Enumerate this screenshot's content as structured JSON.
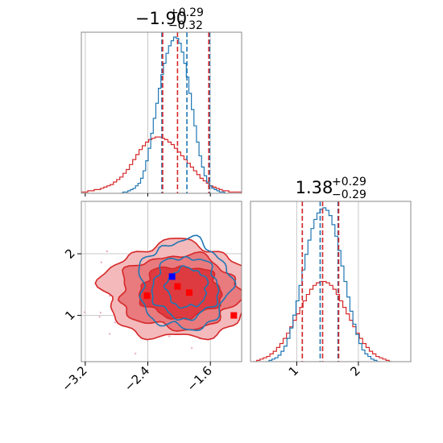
{
  "chart_data": {
    "type": "corner",
    "parameters": [
      {
        "title_value": "−1.90",
        "title_plus": "+0.29",
        "title_minus": "−0.32",
        "range": [
          -3.25,
          -1.2
        ],
        "ticks": [
          -3.2,
          -2.4,
          -1.6
        ],
        "tick_labels": [
          "−3.2",
          "−2.4",
          "−1.6"
        ]
      },
      {
        "title_value": "1.38",
        "title_plus": "+0.29",
        "title_minus": "−0.29",
        "range": [
          0.25,
          2.85
        ],
        "ticks": [
          1,
          2
        ],
        "tick_labels": [
          "1",
          "2"
        ]
      }
    ],
    "colors": {
      "blue": "#1f77b4",
      "red": "#d62728",
      "marker_blue": "#0000ff",
      "marker_red": "#ff0000",
      "grid": "#c8c8c8"
    },
    "series": [
      {
        "color": "blue",
        "quantiles_p1": [
          -2.22,
          -1.9,
          -1.61
        ],
        "quantiles_p2": [
          1.09,
          1.38,
          1.67
        ],
        "hist_p1": {
          "x0": -2.72,
          "x1": -1.42,
          "counts": [
            1,
            1,
            2,
            3,
            4,
            6,
            8,
            12,
            18,
            26,
            36,
            48,
            60,
            72,
            84,
            95,
            104,
            112,
            118,
            122,
            125,
            124,
            120,
            113,
            104,
            93,
            80,
            67,
            54,
            41,
            30,
            21,
            14,
            9,
            6,
            4,
            3,
            2,
            1,
            1
          ]
        },
        "hist_p2": {
          "x0": 0.55,
          "x1": 2.3,
          "counts": [
            1,
            2,
            3,
            5,
            8,
            12,
            18,
            26,
            36,
            47,
            59,
            71,
            83,
            94,
            103,
            110,
            115,
            118,
            119,
            117,
            113,
            106,
            97,
            86,
            74,
            62,
            50,
            39,
            29,
            21,
            14,
            9,
            6,
            4,
            2,
            1
          ]
        }
      },
      {
        "color": "red",
        "quantiles_p1": [
          -2.21,
          -2.02,
          -1.62
        ],
        "quantiles_p2": [
          1.09,
          1.42,
          1.68
        ],
        "hist_p1": {
          "x0": -3.25,
          "x1": -1.2,
          "counts": [
            1,
            1,
            2,
            2,
            3,
            3,
            4,
            5,
            6,
            7,
            9,
            11,
            13,
            16,
            19,
            23,
            27,
            31,
            35,
            38,
            41,
            43,
            44,
            45,
            45,
            44,
            43,
            41,
            39,
            36,
            33,
            30,
            27,
            24,
            21,
            18,
            15,
            12,
            10,
            8,
            6,
            5,
            4,
            3,
            2,
            2,
            1,
            1,
            1,
            1
          ]
        },
        "hist_p2": {
          "x0": 0.35,
          "x1": 2.5,
          "counts": [
            1,
            2,
            3,
            4,
            6,
            8,
            11,
            14,
            18,
            22,
            27,
            32,
            37,
            42,
            47,
            52,
            56,
            59,
            61,
            62,
            62,
            61,
            59,
            56,
            52,
            47,
            42,
            37,
            32,
            27,
            22,
            18,
            14,
            11,
            8,
            6,
            4,
            3,
            2,
            1
          ]
        }
      }
    ],
    "markers": [
      {
        "color": "marker_blue",
        "x": -2.09,
        "y": 1.63
      },
      {
        "color": "marker_red",
        "x": -2.02,
        "y": 1.47
      },
      {
        "color": "marker_red",
        "x": -1.87,
        "y": 1.37
      },
      {
        "color": "marker_red",
        "x": -2.41,
        "y": 1.32
      },
      {
        "color": "marker_red",
        "x": -1.3,
        "y": 1.0
      }
    ],
    "contours": {
      "red": [
        {
          "cx": -2.02,
          "cy": 1.4,
          "rx": 0.95,
          "ry": 0.78
        },
        {
          "cx": -2.0,
          "cy": 1.38,
          "rx": 0.76,
          "ry": 0.6
        },
        {
          "cx": -1.98,
          "cy": 1.38,
          "rx": 0.52,
          "ry": 0.42
        }
      ],
      "blue": [
        {
          "cx": -1.93,
          "cy": 1.5,
          "rx": 0.58,
          "ry": 0.72
        },
        {
          "cx": -1.92,
          "cy": 1.45,
          "rx": 0.42,
          "ry": 0.5
        },
        {
          "cx": -1.9,
          "cy": 1.45,
          "rx": 0.26,
          "ry": 0.32
        }
      ]
    }
  }
}
